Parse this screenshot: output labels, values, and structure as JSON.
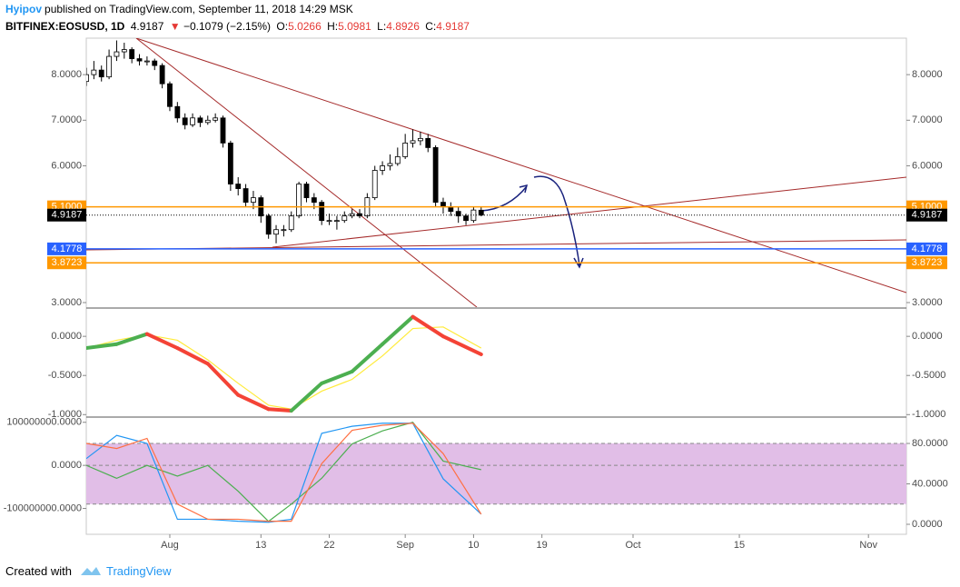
{
  "header": {
    "user": "Hyipov",
    "published": "published on TradingView.com, September 11, 2018 14:29 MSK",
    "symbol": "BITFINEX:EOSUSD, 1D",
    "change_arrow": "▼",
    "change": "−0.1079 (−2.15%)",
    "ohlc_labels": [
      "O:",
      "H:",
      "L:",
      "C:"
    ]
  },
  "footer": {
    "created": "Created with",
    "brand": "TradingView"
  },
  "chart_data": [
    {
      "type": "candlestick",
      "x": [
        "2018-07-21",
        "2018-07-22",
        "2018-07-23",
        "2018-07-24",
        "2018-07-25",
        "2018-07-26",
        "2018-07-27",
        "2018-07-28",
        "2018-07-29",
        "2018-07-30",
        "2018-07-31",
        "2018-08-01",
        "2018-08-02",
        "2018-08-03",
        "2018-08-04",
        "2018-08-05",
        "2018-08-06",
        "2018-08-07",
        "2018-08-08",
        "2018-08-09",
        "2018-08-10",
        "2018-08-11",
        "2018-08-12",
        "2018-08-13",
        "2018-08-14",
        "2018-08-15",
        "2018-08-16",
        "2018-08-17",
        "2018-08-18",
        "2018-08-19",
        "2018-08-20",
        "2018-08-21",
        "2018-08-22",
        "2018-08-23",
        "2018-08-24",
        "2018-08-25",
        "2018-08-26",
        "2018-08-27",
        "2018-08-28",
        "2018-08-29",
        "2018-08-30",
        "2018-08-31",
        "2018-09-01",
        "2018-09-02",
        "2018-09-03",
        "2018-09-04",
        "2018-09-05",
        "2018-09-06",
        "2018-09-07",
        "2018-09-08",
        "2018-09-09",
        "2018-09-10",
        "2018-09-11"
      ],
      "open": [
        7.85,
        8.0,
        8.1,
        7.95,
        8.4,
        8.5,
        8.55,
        8.35,
        8.3,
        8.3,
        8.2,
        7.8,
        7.3,
        7.05,
        6.9,
        7.05,
        6.95,
        7.0,
        7.05,
        6.5,
        5.6,
        5.5,
        5.2,
        5.3,
        4.9,
        4.5,
        4.6,
        4.6,
        4.9,
        5.6,
        5.3,
        5.2,
        4.8,
        4.8,
        4.8,
        4.9,
        4.95,
        4.9,
        5.3,
        5.9,
        6.0,
        6.05,
        6.2,
        6.5,
        6.55,
        6.6,
        6.4,
        5.2,
        5.1,
        5.0,
        4.9,
        4.8,
        5.0266
      ],
      "high": [
        8.15,
        8.3,
        8.2,
        8.55,
        8.75,
        8.7,
        8.6,
        8.45,
        8.4,
        8.35,
        8.25,
        7.85,
        7.4,
        7.15,
        7.15,
        7.1,
        7.1,
        7.15,
        7.1,
        6.55,
        5.75,
        5.6,
        5.45,
        5.35,
        4.95,
        4.7,
        4.7,
        5.0,
        5.65,
        5.65,
        5.4,
        5.25,
        4.95,
        4.9,
        5.0,
        5.05,
        5.05,
        5.4,
        6.0,
        6.1,
        6.25,
        6.4,
        6.7,
        6.8,
        6.75,
        6.7,
        6.45,
        5.3,
        5.2,
        5.1,
        4.95,
        5.1,
        5.0981
      ],
      "low": [
        7.75,
        7.9,
        7.85,
        7.9,
        8.3,
        8.35,
        8.25,
        8.2,
        8.2,
        8.1,
        7.7,
        7.2,
        6.95,
        6.8,
        6.85,
        6.85,
        6.9,
        6.95,
        6.4,
        5.45,
        5.35,
        5.1,
        5.05,
        4.75,
        4.4,
        4.3,
        4.45,
        4.55,
        4.85,
        5.2,
        5.05,
        4.7,
        4.7,
        4.6,
        4.75,
        4.85,
        4.85,
        4.85,
        5.25,
        5.8,
        5.9,
        6.0,
        6.15,
        6.4,
        6.45,
        6.3,
        5.1,
        4.95,
        4.9,
        4.75,
        4.7,
        4.75,
        4.8926
      ],
      "close": [
        8.0,
        8.1,
        7.95,
        8.4,
        8.5,
        8.55,
        8.35,
        8.3,
        8.3,
        8.2,
        7.8,
        7.3,
        7.05,
        6.9,
        7.05,
        6.95,
        7.0,
        7.05,
        6.5,
        5.6,
        5.5,
        5.2,
        5.3,
        4.9,
        4.5,
        4.6,
        4.6,
        4.9,
        5.6,
        5.3,
        5.2,
        4.8,
        4.8,
        4.8,
        4.9,
        4.95,
        4.9,
        5.3,
        5.9,
        6.0,
        6.05,
        6.2,
        6.5,
        6.55,
        6.6,
        6.4,
        5.2,
        5.1,
        5.0,
        4.9,
        4.8,
        5.03,
        4.9187
      ],
      "up_color": "#ffffff",
      "down_color": "#000000",
      "border_color": "#000000",
      "xlim": [
        "2018-07-21",
        "2018-11-06"
      ],
      "ylim": [
        2.9,
        8.8
      ],
      "yticks": [
        {
          "value": 3,
          "label": "3.0000"
        },
        {
          "value": 6,
          "label": "6.0000"
        },
        {
          "value": 7,
          "label": "7.0000"
        },
        {
          "value": 8,
          "label": "8.0000"
        }
      ],
      "levels": [
        {
          "value": 5.1,
          "label": "5.1000",
          "color": "#ff9800"
        },
        {
          "value": 4.9187,
          "label": "4.9187",
          "color": "#000000",
          "style": "dotted"
        },
        {
          "value": 4.1778,
          "label": "4.1778",
          "color": "#2962ff"
        },
        {
          "value": 3.8723,
          "label": "3.8723",
          "color": "#ff9800"
        }
      ]
    },
    {
      "type": "line",
      "x": [
        "2018-07-21",
        "2018-07-25",
        "2018-07-29",
        "2018-08-02",
        "2018-08-06",
        "2018-08-10",
        "2018-08-14",
        "2018-08-17",
        "2018-08-21",
        "2018-08-25",
        "2018-08-29",
        "2018-09-02",
        "2018-09-06",
        "2018-09-11"
      ],
      "xlim": [
        "2018-07-21",
        "2018-11-06"
      ],
      "ylim": [
        -1.02,
        0.35
      ],
      "yticks": [
        {
          "value": -1,
          "label": "-1.0000"
        },
        {
          "value": -0.5,
          "label": "-0.5000"
        },
        {
          "value": 0,
          "label": "0.0000"
        }
      ],
      "series": [
        {
          "color": "#ffeb3b",
          "values": [
            -0.15,
            -0.05,
            0.02,
            -0.05,
            -0.3,
            -0.6,
            -0.88,
            -0.93,
            -0.7,
            -0.55,
            -0.25,
            0.1,
            0.12,
            -0.15
          ]
        },
        {
          "color": "#f44336",
          "up_color": "#4caf50",
          "width": 4,
          "values": [
            -0.15,
            -0.1,
            0.03,
            -0.15,
            -0.35,
            -0.75,
            -0.93,
            -0.95,
            -0.6,
            -0.45,
            -0.1,
            0.25,
            0.0,
            -0.23
          ]
        }
      ]
    },
    {
      "type": "line",
      "x": [
        "2018-07-21",
        "2018-07-25",
        "2018-07-29",
        "2018-08-02",
        "2018-08-06",
        "2018-08-10",
        "2018-08-14",
        "2018-08-17",
        "2018-08-21",
        "2018-08-25",
        "2018-08-29",
        "2018-09-02",
        "2018-09-06",
        "2018-09-11"
      ],
      "xlim": [
        "2018-07-21",
        "2018-11-06"
      ],
      "ylim": [
        -160000000,
        110000000
      ],
      "yticks": [
        {
          "value": -100000000,
          "label": "-100000000.0000"
        },
        {
          "value": 0,
          "label": "0.0000"
        },
        {
          "value": 100000000,
          "label": "100000000.0000"
        }
      ],
      "y2lim": [
        -9.9,
        105.2
      ],
      "y2ticks": [
        {
          "value": 0,
          "label": "0.0000"
        },
        {
          "value": 40,
          "label": "40.0000"
        },
        {
          "value": 80,
          "label": "80.0000"
        }
      ],
      "band": [
        20,
        80
      ],
      "band_color": "#e1bee7",
      "series": [
        {
          "color": "#4caf50",
          "values": [
            0,
            -30000000,
            0,
            -25000000,
            0,
            -60000000,
            -130000000,
            -90000000,
            -30000000,
            50000000,
            80000000,
            100000000,
            10000000,
            -10000000
          ]
        },
        {
          "color": "#2196f3",
          "axis": "y2",
          "values": [
            65,
            88,
            80,
            5,
            5,
            3,
            2,
            5,
            90,
            97,
            100,
            100,
            45,
            10
          ]
        },
        {
          "color": "#ff7043",
          "axis": "y2",
          "values": [
            80,
            75,
            85,
            20,
            5,
            5,
            3,
            3,
            60,
            93,
            98,
            100,
            70,
            10
          ]
        }
      ],
      "xticks": [
        {
          "value": "2018-08-01",
          "label": "Aug"
        },
        {
          "value": "2018-08-13",
          "label": "13"
        },
        {
          "value": "2018-08-22",
          "label": "22"
        },
        {
          "value": "2018-09-01",
          "label": "Sep"
        },
        {
          "value": "2018-09-10",
          "label": "10"
        },
        {
          "value": "2018-09-19",
          "label": "19"
        },
        {
          "value": "2018-10-01",
          "label": "Oct"
        },
        {
          "value": "2018-10-15",
          "label": "15"
        },
        {
          "value": "2018-11-01",
          "label": "Nov"
        }
      ]
    }
  ]
}
